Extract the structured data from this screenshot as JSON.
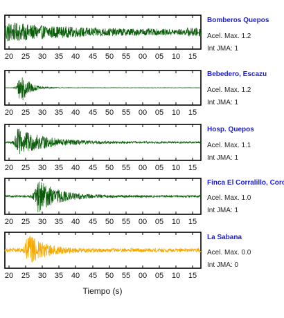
{
  "chart_data": {
    "type": "line",
    "xlabel": "Tiempo (s)",
    "x_ticks": [
      "20",
      "25",
      "30",
      "35",
      "40",
      "45",
      "50",
      "55",
      "00",
      "05",
      "10",
      "15"
    ],
    "traces": [
      {
        "station": "Bomberos Quepos",
        "acel_label": "Acel. Max. 1.2",
        "jma_label": "Int JMA: 1",
        "color": "#0a5c0a",
        "peak_time": 10,
        "amplitude": 0.95,
        "decay": 55,
        "base": 0.18
      },
      {
        "station": "Bebedero, Escazu",
        "acel_label": "Acel. Max. 1.2",
        "jma_label": "Int JMA: 1",
        "color": "#0a5c0a",
        "peak_time": 23,
        "amplitude": 1.0,
        "decay": 7,
        "base": 0.01
      },
      {
        "station": "Hosp. Quepos",
        "acel_label": "Acel. Max. 1.1",
        "jma_label": "Int JMA: 1",
        "color": "#0a5c0a",
        "peak_time": 22,
        "amplitude": 0.85,
        "decay": 25,
        "base": 0.06
      },
      {
        "station": "Finca El Corralillo, Corc",
        "acel_label": "Acel. Max. 1.0",
        "jma_label": "Int JMA: 1",
        "color": "#0a5c0a",
        "peak_time": 28,
        "amplitude": 1.0,
        "decay": 18,
        "base": 0.06
      },
      {
        "station": "La Sabana",
        "acel_label": "Acel. Max. 0.0",
        "jma_label": "Int JMA: 0",
        "color": "#f5a800",
        "peak_time": 25,
        "amplitude": 1.0,
        "decay": 14,
        "base": 0.12
      }
    ]
  }
}
